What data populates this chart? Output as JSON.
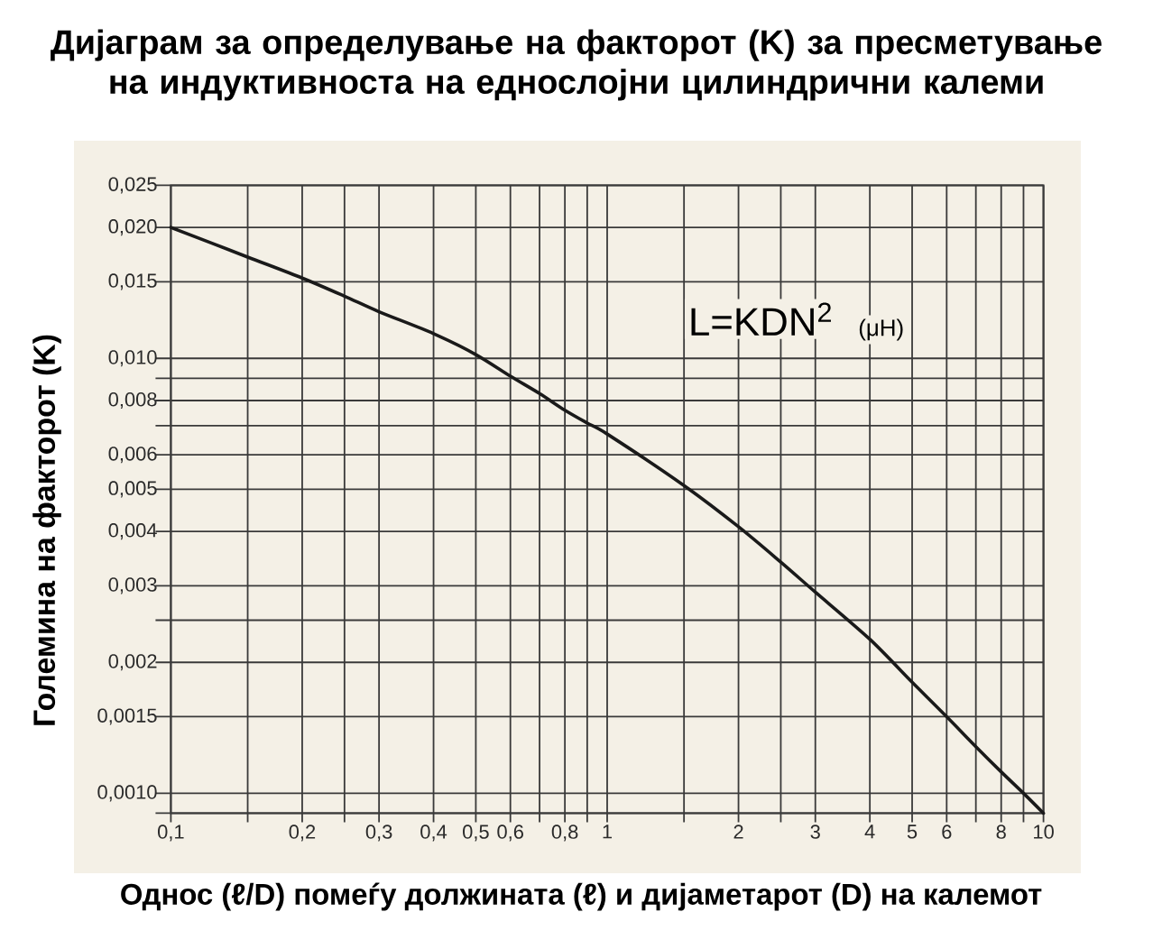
{
  "chart_data": {
    "type": "line",
    "title": "Дијаграм за определување на факторот (K) за пресметување на индуктивноста на еднослојни цилиндрични калеми",
    "xlabel": "Однос (ℓ/D) помеѓу должината (ℓ) и дијаметарот (D) на калемот",
    "ylabel": "Големина на факторот (K)",
    "annotations": [
      "L=KDN$^{2}$",
      "(μH)"
    ],
    "x": [
      0.1,
      0.15,
      0.2,
      0.25,
      0.3,
      0.4,
      0.5,
      0.6,
      0.7,
      0.8,
      0.9,
      1,
      1.5,
      2,
      2.5,
      3,
      4,
      5,
      6,
      7,
      8,
      9,
      10
    ],
    "values": [
      0.02,
      0.0171,
      0.0153,
      0.0139,
      0.0128,
      0.0114,
      0.0102,
      0.0091,
      0.0083,
      0.0076,
      0.0071,
      0.0067,
      0.0051,
      0.0041,
      0.0034,
      0.0029,
      0.00226,
      0.0018,
      0.0015,
      0.00128,
      0.00112,
      0.001,
      0.0009
    ],
    "color": "#1a1a1a",
    "xlim": [
      0.1,
      10
    ],
    "ylim": [
      0.0009,
      0.025
    ],
    "xticks": [
      {
        "value": 0.1,
        "label": "0,1"
      },
      {
        "value": 0.15,
        "label": null
      },
      {
        "value": 0.2,
        "label": "0,2"
      },
      {
        "value": 0.25,
        "label": null
      },
      {
        "value": 0.3,
        "label": "0,3"
      },
      {
        "value": 0.4,
        "label": "0,4"
      },
      {
        "value": 0.5,
        "label": "0,5"
      },
      {
        "value": 0.6,
        "label": "0,6"
      },
      {
        "value": 0.7,
        "label": null
      },
      {
        "value": 0.8,
        "label": "0,8"
      },
      {
        "value": 0.9,
        "label": null
      },
      1,
      {
        "value": 1.5,
        "label": null
      },
      2,
      {
        "value": 2.5,
        "label": null
      },
      3,
      4,
      5,
      6,
      {
        "value": 7,
        "label": null
      },
      8,
      {
        "value": 9,
        "label": null
      },
      10
    ],
    "yticks": [
      {
        "value": 0.0009,
        "label": null
      },
      {
        "value": 0.001,
        "label": "0,0010"
      },
      {
        "value": 0.0015,
        "label": "0,0015"
      },
      {
        "value": 0.002,
        "label": "0,002"
      },
      {
        "value": 0.0025,
        "label": null
      },
      {
        "value": 0.003,
        "label": "0,003"
      },
      {
        "value": 0.004,
        "label": "0,004"
      },
      {
        "value": 0.005,
        "label": "0,005"
      },
      {
        "value": 0.006,
        "label": "0,006"
      },
      {
        "value": 0.007,
        "label": null
      },
      {
        "value": 0.008,
        "label": "0,008"
      },
      {
        "value": 0.009,
        "label": null
      },
      {
        "value": 0.01,
        "label": "0,010"
      },
      {
        "value": 0.015,
        "label": "0,015"
      },
      {
        "value": 0.02,
        "label": "0,020"
      },
      {
        "value": 0.025,
        "label": "0,025"
      }
    ],
    "log": "xy",
    "grid": true,
    "marker": "none",
    "line_style": "solid"
  }
}
